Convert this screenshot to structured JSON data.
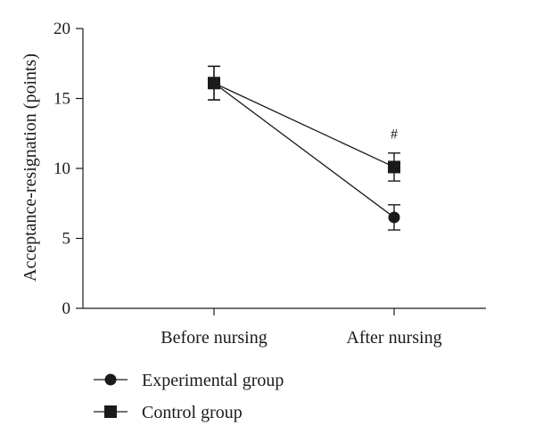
{
  "chart_data": {
    "type": "line",
    "title": "",
    "xlabel": "",
    "ylabel": "Acceptance-resignation (points)",
    "categories": [
      "Before nursing",
      "After nursing"
    ],
    "ylim": [
      0,
      20
    ],
    "yticks": [
      0,
      5,
      10,
      15,
      20
    ],
    "grid": false,
    "legend_position": "bottom-left",
    "series": [
      {
        "name": "Experimental group",
        "marker": "circle",
        "values": [
          16.1,
          6.5
        ],
        "error": [
          1.2,
          0.9
        ]
      },
      {
        "name": "Control group",
        "marker": "square",
        "values": [
          16.1,
          10.1
        ],
        "error": [
          1.2,
          1.0
        ]
      }
    ],
    "annotations": [
      {
        "text": "#",
        "category": "After nursing",
        "series": "Control group"
      }
    ],
    "colors": {
      "ink": "#1a1a1a"
    }
  }
}
